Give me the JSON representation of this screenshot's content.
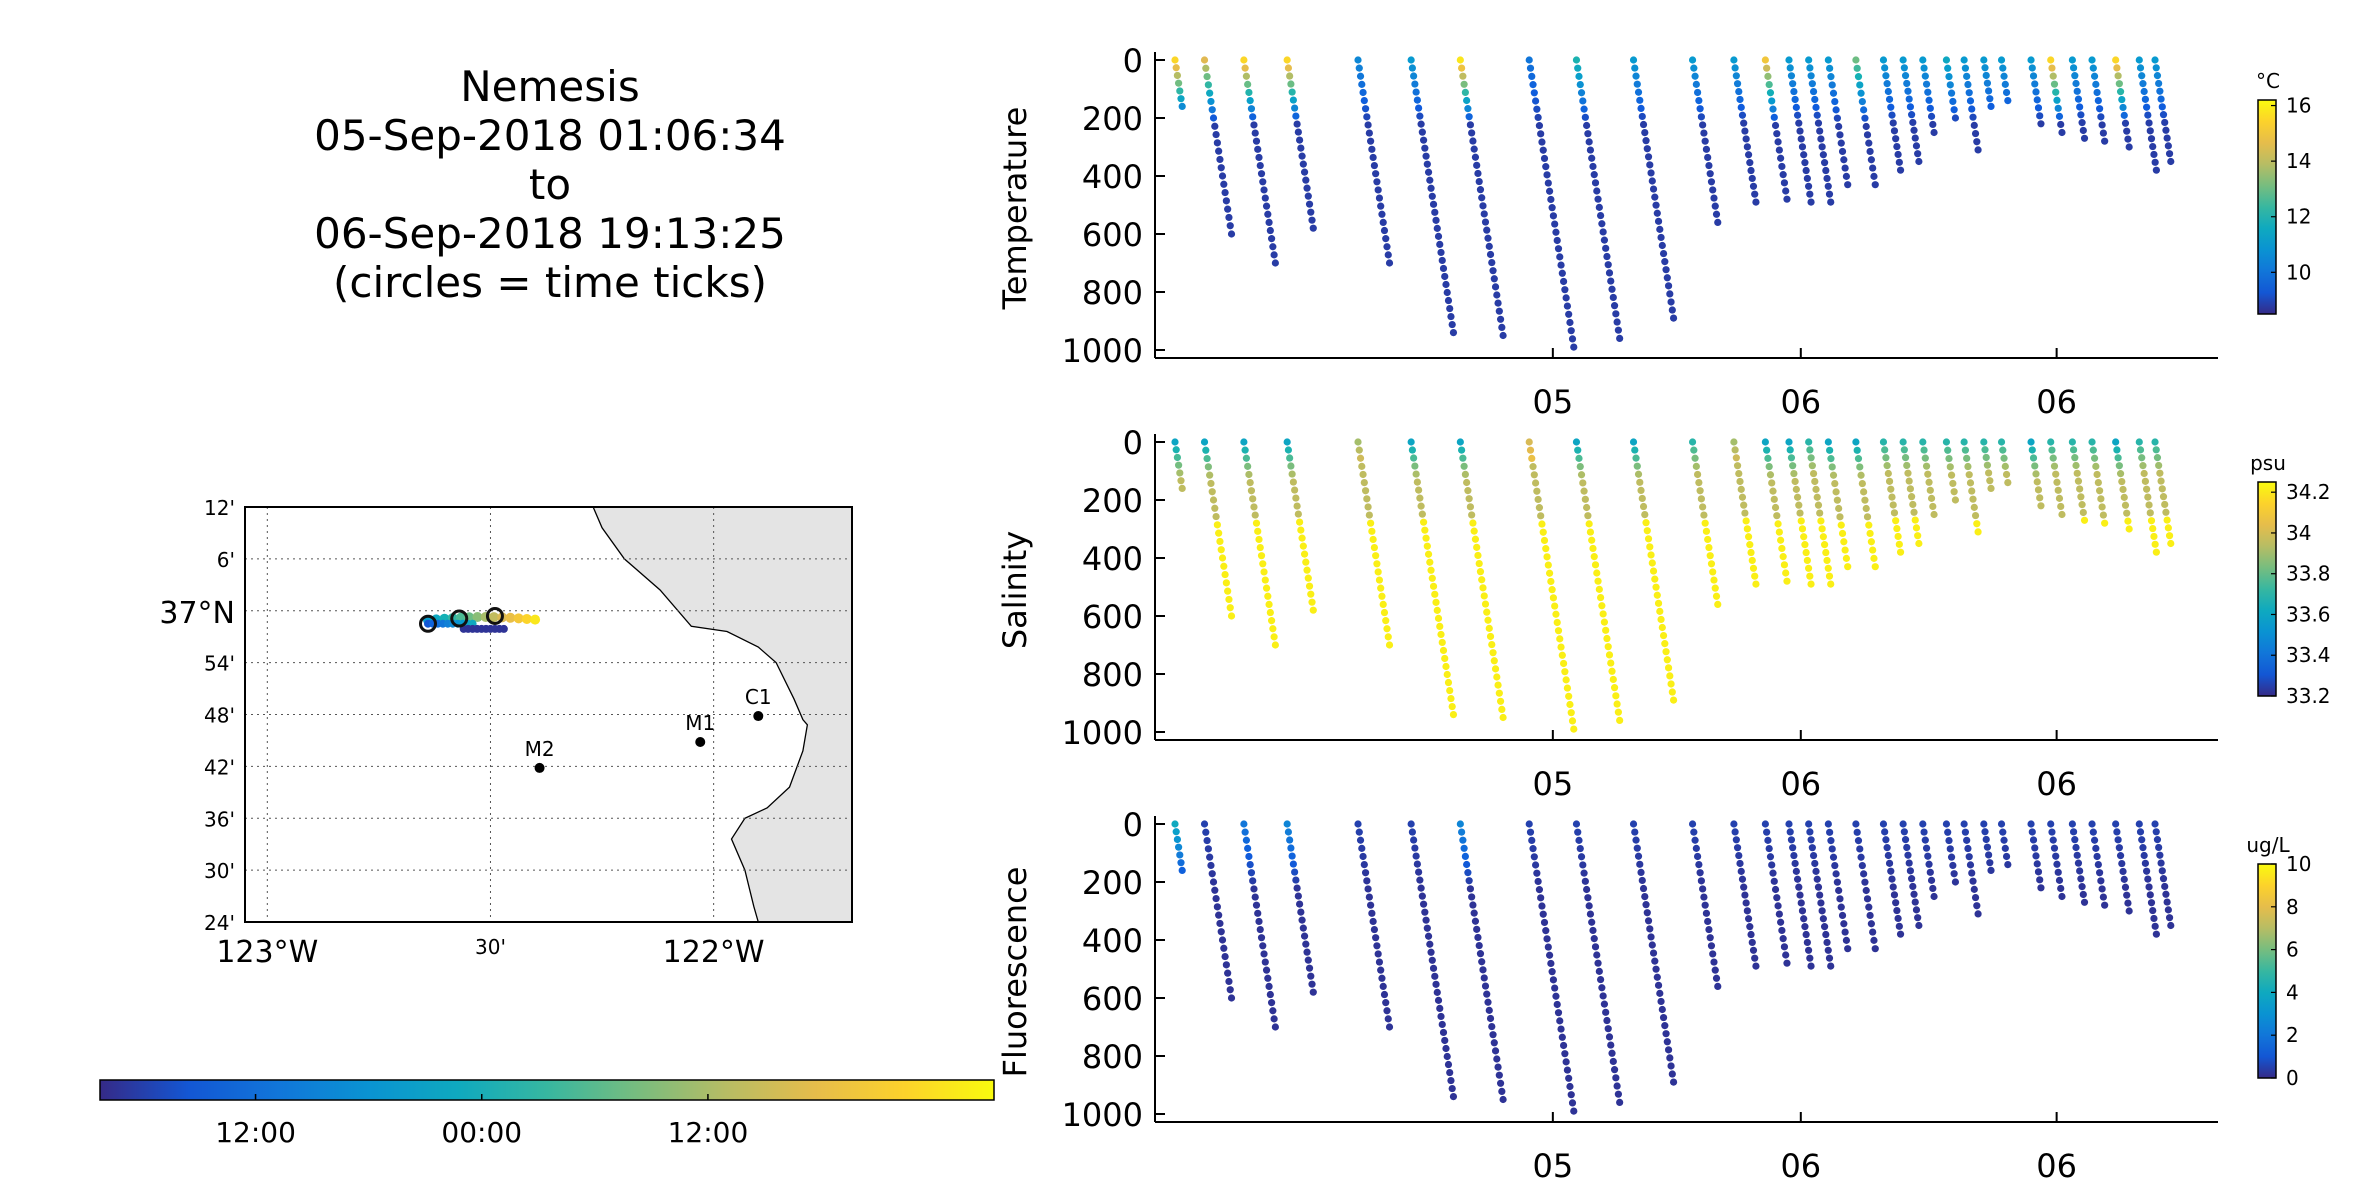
{
  "title": {
    "lines": [
      "Nemesis",
      "05-Sep-2018 01:06:34",
      "to",
      "06-Sep-2018 19:13:25",
      "(circles = time ticks)"
    ]
  },
  "map": {
    "lat_ticks": [
      "12'",
      "6'",
      "37",
      "54'",
      "48'",
      "42'",
      "36'",
      "30'",
      "24'"
    ],
    "lat_main_label": "37°N",
    "lon_ticks": [
      "123°W",
      "30'",
      "122°W"
    ],
    "stations": [
      {
        "name": "M2",
        "lon": -122.39,
        "lat": 36.697
      },
      {
        "name": "M1",
        "lon": -122.03,
        "lat": 36.747
      },
      {
        "name": "C1",
        "lon": -121.9,
        "lat": 36.797
      }
    ],
    "land_color": "#e4e4e4",
    "track_note": "track colored by time; circles = time ticks"
  },
  "time_colorbar": {
    "tick_labels": [
      "12:00",
      "00:00",
      "12:00"
    ],
    "colormap": "parula"
  },
  "chart_data": [
    {
      "type": "scatter",
      "name": "temperature-profile",
      "ylabel": "Temperature",
      "ylim": [
        0,
        1000
      ],
      "y_reversed": true,
      "yticks": [
        0,
        200,
        400,
        600,
        800,
        1000
      ],
      "xtick_labels": [
        "05",
        "06",
        "06"
      ],
      "colorbar_unit": "°C",
      "colorbar_ticks": [
        10,
        12,
        14,
        16
      ],
      "clim": [
        8.5,
        16.2
      ],
      "profiles": [
        {
          "t": 0.0,
          "depth": 160,
          "surface": 15.5
        },
        {
          "t": 0.15,
          "depth": 600,
          "surface": 14.5
        },
        {
          "t": 0.35,
          "depth": 700,
          "surface": 15.5
        },
        {
          "t": 0.57,
          "depth": 580,
          "surface": 15.5
        },
        {
          "t": 0.93,
          "depth": 700,
          "surface": 10.5
        },
        {
          "t": 1.2,
          "depth": 940,
          "surface": 11.0
        },
        {
          "t": 1.45,
          "depth": 950,
          "surface": 15.8
        },
        {
          "t": 1.8,
          "depth": 990,
          "surface": 10.0
        },
        {
          "t": 2.04,
          "depth": 960,
          "surface": 12.0
        },
        {
          "t": 2.33,
          "depth": 890,
          "surface": 11.0
        },
        {
          "t": 2.63,
          "depth": 560,
          "surface": 11.0
        },
        {
          "t": 2.84,
          "depth": 490,
          "surface": 11.0
        },
        {
          "t": 3.0,
          "depth": 480,
          "surface": 15.0
        },
        {
          "t": 3.12,
          "depth": 490,
          "surface": 11.0
        },
        {
          "t": 3.22,
          "depth": 490,
          "surface": 11.0
        },
        {
          "t": 3.32,
          "depth": 430,
          "surface": 11.0
        },
        {
          "t": 3.46,
          "depth": 430,
          "surface": 13.0
        },
        {
          "t": 3.6,
          "depth": 380,
          "surface": 11.0
        },
        {
          "t": 3.7,
          "depth": 350,
          "surface": 11.0
        },
        {
          "t": 3.8,
          "depth": 250,
          "surface": 11.0
        },
        {
          "t": 3.92,
          "depth": 200,
          "surface": 11.5
        },
        {
          "t": 4.01,
          "depth": 310,
          "surface": 11.0
        },
        {
          "t": 4.11,
          "depth": 160,
          "surface": 11.0
        },
        {
          "t": 4.2,
          "depth": 140,
          "surface": 11.0
        },
        {
          "t": 4.35,
          "depth": 220,
          "surface": 11.0
        },
        {
          "t": 4.45,
          "depth": 250,
          "surface": 15.5
        },
        {
          "t": 4.56,
          "depth": 270,
          "surface": 11.0
        },
        {
          "t": 4.66,
          "depth": 280,
          "surface": 11.0
        },
        {
          "t": 4.78,
          "depth": 300,
          "surface": 15.5
        },
        {
          "t": 4.9,
          "depth": 380,
          "surface": 11.0
        },
        {
          "t": 4.98,
          "depth": 350,
          "surface": 11.0
        }
      ]
    },
    {
      "type": "scatter",
      "name": "salinity-profile",
      "ylabel": "Salinity",
      "ylim": [
        0,
        1000
      ],
      "y_reversed": true,
      "yticks": [
        0,
        200,
        400,
        600,
        800,
        1000
      ],
      "xtick_labels": [
        "05",
        "06",
        "06"
      ],
      "colorbar_unit": "psu",
      "colorbar_ticks": [
        33.2,
        33.4,
        33.6,
        33.8,
        34,
        34.2
      ],
      "clim": [
        33.2,
        34.25
      ],
      "profiles": [
        {
          "t": 0.0,
          "depth": 160,
          "surface": 33.6
        },
        {
          "t": 0.15,
          "depth": 600,
          "surface": 33.6
        },
        {
          "t": 0.35,
          "depth": 700,
          "surface": 33.6
        },
        {
          "t": 0.57,
          "depth": 580,
          "surface": 33.6
        },
        {
          "t": 0.93,
          "depth": 700,
          "surface": 33.9
        },
        {
          "t": 1.2,
          "depth": 940,
          "surface": 33.6
        },
        {
          "t": 1.45,
          "depth": 950,
          "surface": 33.6
        },
        {
          "t": 1.8,
          "depth": 990,
          "surface": 34.0
        },
        {
          "t": 2.04,
          "depth": 960,
          "surface": 33.6
        },
        {
          "t": 2.33,
          "depth": 890,
          "surface": 33.6
        },
        {
          "t": 2.63,
          "depth": 560,
          "surface": 33.7
        },
        {
          "t": 2.84,
          "depth": 490,
          "surface": 33.9
        },
        {
          "t": 3.0,
          "depth": 480,
          "surface": 33.6
        },
        {
          "t": 3.12,
          "depth": 490,
          "surface": 33.6
        },
        {
          "t": 3.22,
          "depth": 490,
          "surface": 33.7
        },
        {
          "t": 3.32,
          "depth": 430,
          "surface": 33.6
        },
        {
          "t": 3.46,
          "depth": 430,
          "surface": 33.6
        },
        {
          "t": 3.6,
          "depth": 380,
          "surface": 33.7
        },
        {
          "t": 3.7,
          "depth": 350,
          "surface": 33.7
        },
        {
          "t": 3.8,
          "depth": 250,
          "surface": 33.7
        },
        {
          "t": 3.92,
          "depth": 200,
          "surface": 33.7
        },
        {
          "t": 4.01,
          "depth": 310,
          "surface": 33.7
        },
        {
          "t": 4.11,
          "depth": 160,
          "surface": 33.7
        },
        {
          "t": 4.2,
          "depth": 140,
          "surface": 33.7
        },
        {
          "t": 4.35,
          "depth": 220,
          "surface": 33.6
        },
        {
          "t": 4.45,
          "depth": 250,
          "surface": 33.7
        },
        {
          "t": 4.56,
          "depth": 270,
          "surface": 33.7
        },
        {
          "t": 4.66,
          "depth": 280,
          "surface": 33.7
        },
        {
          "t": 4.78,
          "depth": 300,
          "surface": 33.6
        },
        {
          "t": 4.9,
          "depth": 380,
          "surface": 33.7
        },
        {
          "t": 4.98,
          "depth": 350,
          "surface": 33.7
        }
      ]
    },
    {
      "type": "scatter",
      "name": "fluorescence-profile",
      "ylabel": "Fluorescence",
      "ylim": [
        0,
        1000
      ],
      "y_reversed": true,
      "yticks": [
        0,
        200,
        400,
        600,
        800,
        1000
      ],
      "xtick_labels": [
        "05",
        "06",
        "06"
      ],
      "colorbar_unit": "ug/L",
      "colorbar_ticks": [
        0,
        2,
        4,
        6,
        8,
        10
      ],
      "clim": [
        0,
        10
      ],
      "profiles": [
        {
          "t": 0.0,
          "depth": 160,
          "surface": 4.0
        },
        {
          "t": 0.15,
          "depth": 600,
          "surface": 0.5
        },
        {
          "t": 0.35,
          "depth": 700,
          "surface": 2.0
        },
        {
          "t": 0.57,
          "depth": 580,
          "surface": 2.5
        },
        {
          "t": 0.93,
          "depth": 700,
          "surface": 0.5
        },
        {
          "t": 1.2,
          "depth": 940,
          "surface": 0.5
        },
        {
          "t": 1.45,
          "depth": 950,
          "surface": 2.5
        },
        {
          "t": 1.8,
          "depth": 990,
          "surface": 0.5
        },
        {
          "t": 2.04,
          "depth": 960,
          "surface": 0.5
        },
        {
          "t": 2.33,
          "depth": 890,
          "surface": 0.5
        },
        {
          "t": 2.63,
          "depth": 560,
          "surface": 0.5
        },
        {
          "t": 2.84,
          "depth": 490,
          "surface": 0.5
        },
        {
          "t": 3.0,
          "depth": 480,
          "surface": 0.5
        },
        {
          "t": 3.12,
          "depth": 490,
          "surface": 0.5
        },
        {
          "t": 3.22,
          "depth": 490,
          "surface": 0.5
        },
        {
          "t": 3.32,
          "depth": 430,
          "surface": 0.5
        },
        {
          "t": 3.46,
          "depth": 430,
          "surface": 0.5
        },
        {
          "t": 3.6,
          "depth": 380,
          "surface": 0.5
        },
        {
          "t": 3.7,
          "depth": 350,
          "surface": 0.5
        },
        {
          "t": 3.8,
          "depth": 250,
          "surface": 0.5
        },
        {
          "t": 3.92,
          "depth": 200,
          "surface": 0.5
        },
        {
          "t": 4.01,
          "depth": 310,
          "surface": 0.5
        },
        {
          "t": 4.11,
          "depth": 160,
          "surface": 0.5
        },
        {
          "t": 4.2,
          "depth": 140,
          "surface": 0.5
        },
        {
          "t": 4.35,
          "depth": 220,
          "surface": 0.5
        },
        {
          "t": 4.45,
          "depth": 250,
          "surface": 0.5
        },
        {
          "t": 4.56,
          "depth": 270,
          "surface": 0.5
        },
        {
          "t": 4.66,
          "depth": 280,
          "surface": 0.5
        },
        {
          "t": 4.78,
          "depth": 300,
          "surface": 0.5
        },
        {
          "t": 4.9,
          "depth": 380,
          "surface": 0.5
        },
        {
          "t": 4.98,
          "depth": 350,
          "surface": 0.5
        }
      ]
    }
  ]
}
